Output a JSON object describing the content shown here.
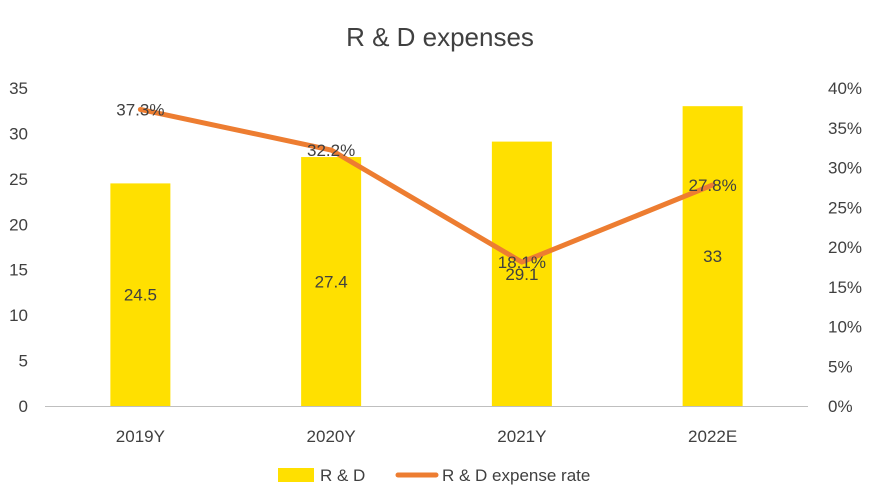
{
  "chart_data": {
    "type": "bar+line",
    "title": "R & D expenses",
    "categories": [
      "2019Y",
      "2020Y",
      "2021Y",
      "2022E"
    ],
    "series": [
      {
        "name": "R & D",
        "type": "bar",
        "axis": "left",
        "values": [
          24.5,
          27.4,
          29.1,
          33
        ],
        "labels": [
          "24.5",
          "27.4",
          "29.1",
          "33"
        ],
        "color": "#FFE000"
      },
      {
        "name": "R & D expense rate",
        "type": "line",
        "axis": "right",
        "values": [
          37.3,
          32.2,
          18.1,
          27.8
        ],
        "labels": [
          "37.3%",
          "32.2%",
          "18.1%",
          "27.8%"
        ],
        "color": "#ED7D31"
      }
    ],
    "y_left": {
      "min": 0,
      "max": 35,
      "ticks": [
        "0",
        "5",
        "10",
        "15",
        "20",
        "25",
        "30",
        "35"
      ]
    },
    "y_right": {
      "min": 0,
      "max": 40,
      "ticks": [
        "0%",
        "5%",
        "10%",
        "15%",
        "20%",
        "25%",
        "30%",
        "35%",
        "40%"
      ]
    },
    "legend_position": "bottom",
    "grid": false,
    "colors": {
      "text": "#404040",
      "axis": "#BFBFBF"
    }
  }
}
